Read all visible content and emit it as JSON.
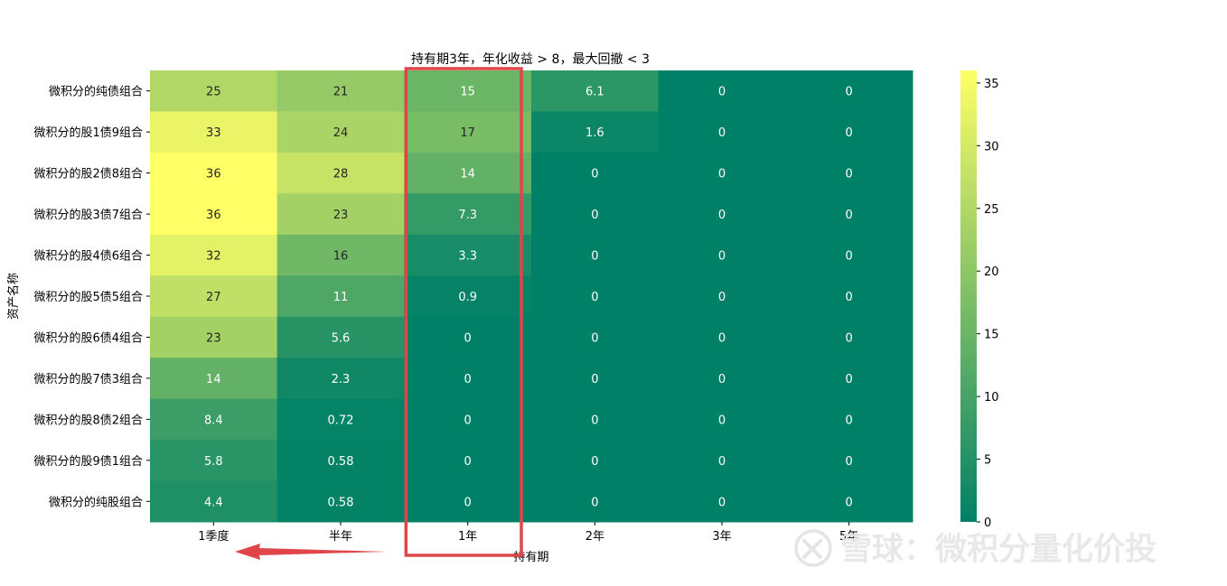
{
  "chart_data": {
    "type": "heatmap",
    "title": "持有期3年，年化收益 > 8，最大回撤 < 3",
    "xlabel": "持有期",
    "ylabel": "资产名称",
    "x": [
      "1季度",
      "半年",
      "1年",
      "2年",
      "3年",
      "5年"
    ],
    "y": [
      "微积分的纯债组合",
      "微积分的股1债9组合",
      "微积分的股2债8组合",
      "微积分的股3债7组合",
      "微积分的股4债6组合",
      "微积分的股5债5组合",
      "微积分的股6债4组合",
      "微积分的股7债3组合",
      "微积分的股8债2组合",
      "微积分的股9债1组合",
      "微积分的纯股组合"
    ],
    "values": [
      [
        25,
        21,
        15,
        6.1,
        0,
        0
      ],
      [
        33,
        24,
        17,
        1.6,
        0,
        0
      ],
      [
        36,
        28,
        14,
        0,
        0,
        0
      ],
      [
        36,
        23,
        7.3,
        0,
        0,
        0
      ],
      [
        32,
        16,
        3.3,
        0,
        0,
        0
      ],
      [
        27,
        11,
        0.9,
        0,
        0,
        0
      ],
      [
        23,
        5.6,
        0,
        0,
        0,
        0
      ],
      [
        14,
        2.3,
        0,
        0,
        0,
        0
      ],
      [
        8.4,
        0.72,
        0,
        0,
        0,
        0
      ],
      [
        5.8,
        0.58,
        0,
        0,
        0,
        0
      ],
      [
        4.4,
        0.58,
        0,
        0,
        0,
        0
      ]
    ],
    "colormap": "summer",
    "color_low": "#008066",
    "color_high": "#ffff66",
    "vmin": 0,
    "vmax": 36,
    "colorbar_ticks": [
      0,
      5,
      10,
      15,
      20,
      25,
      30,
      35
    ],
    "highlight": {
      "column": "1年",
      "color": "#e0454a"
    },
    "arrow_color": "#e0454a"
  },
  "watermark": "雪球：微积分量化价投"
}
